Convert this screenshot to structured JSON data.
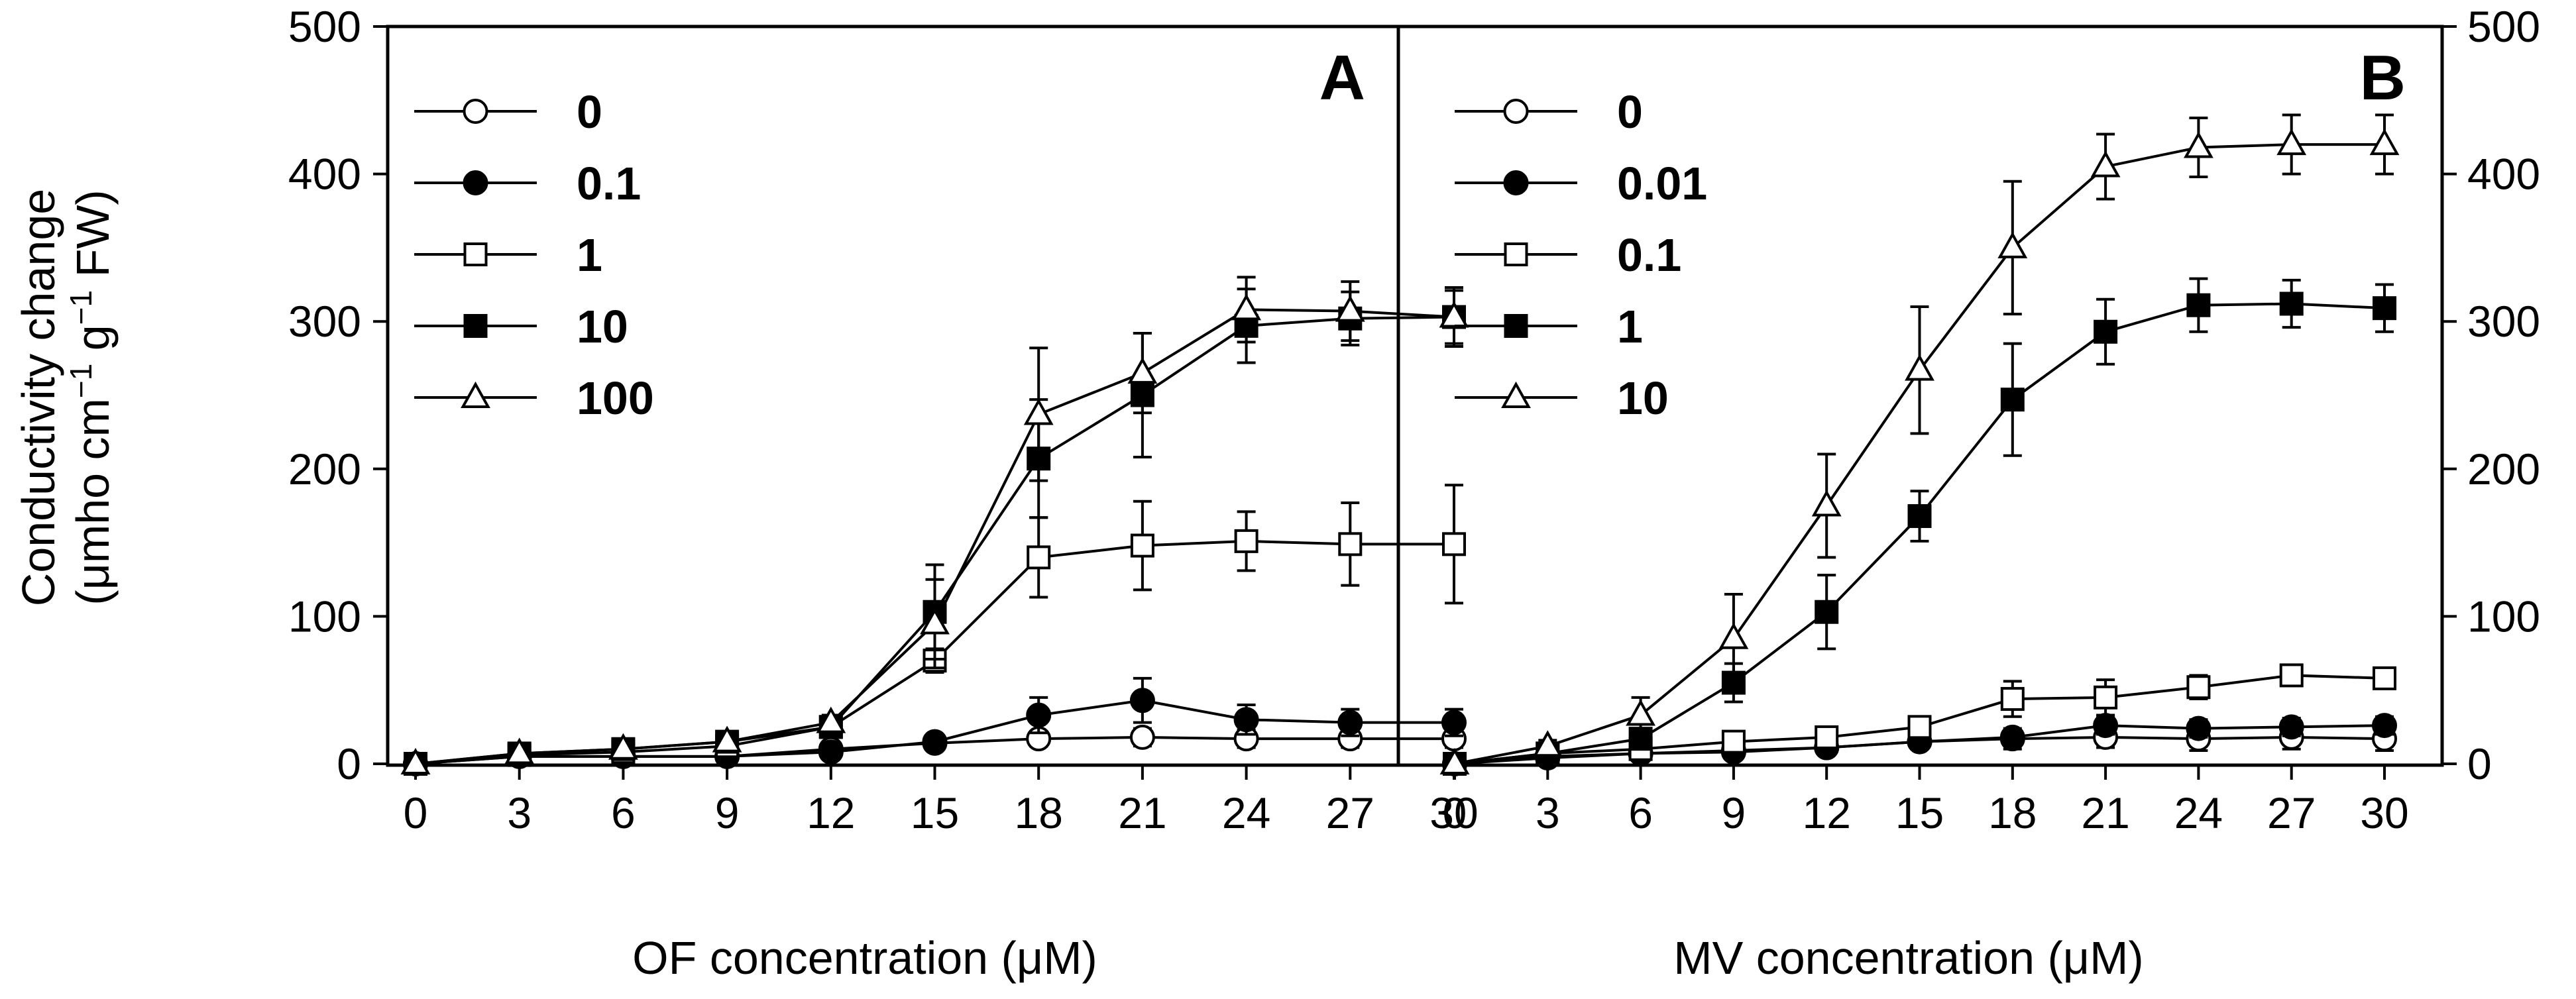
{
  "chart_data": [
    {
      "type": "line",
      "panel_label": "A",
      "xlabel": "OF concentration (μM)",
      "ylabel_line1": "Conductivity change",
      "ylabel_unit": "μmho",
      "ylabel_cm": "cm",
      "ylabel_exp": "−1",
      "ylabel_g": "g",
      "ylabel_fw": "FW)",
      "x": [
        0,
        3,
        6,
        9,
        12,
        15,
        18,
        21,
        24,
        27,
        30
      ],
      "x_ticks": [
        "0",
        "3",
        "6",
        "9",
        "12",
        "15",
        "18",
        "21",
        "24",
        "27",
        "30"
      ],
      "xlim": [
        0,
        30
      ],
      "ylim": [
        0,
        500
      ],
      "y_ticks": [
        "0",
        "100",
        "200",
        "300",
        "400",
        "500"
      ],
      "legend_position": "top-left",
      "series": [
        {
          "name": "0",
          "marker": "circle-open",
          "values": [
            0,
            5,
            5,
            5,
            10,
            14,
            17,
            18,
            17,
            17,
            17
          ],
          "errors": [
            0,
            2,
            2,
            2,
            3,
            3,
            5,
            6,
            6,
            6,
            6
          ]
        },
        {
          "name": "0.1",
          "marker": "circle-filled",
          "values": [
            0,
            5,
            5,
            5,
            8,
            15,
            33,
            43,
            30,
            28,
            28
          ],
          "errors": [
            0,
            2,
            2,
            2,
            3,
            4,
            12,
            15,
            10,
            9,
            9
          ]
        },
        {
          "name": "1",
          "marker": "square-open",
          "values": [
            0,
            6,
            8,
            12,
            25,
            70,
            140,
            148,
            151,
            149,
            149
          ],
          "errors": [
            0,
            3,
            3,
            4,
            6,
            8,
            27,
            30,
            20,
            28,
            40
          ]
        },
        {
          "name": "10",
          "marker": "square-filled",
          "values": [
            0,
            7,
            10,
            15,
            25,
            103,
            207,
            250,
            297,
            302,
            303
          ],
          "errors": [
            0,
            3,
            4,
            5,
            5,
            32,
            40,
            42,
            25,
            18,
            18
          ]
        },
        {
          "name": "100",
          "marker": "triangle-open",
          "values": [
            0,
            7,
            10,
            15,
            28,
            95,
            237,
            265,
            308,
            307,
            303
          ],
          "errors": [
            0,
            3,
            4,
            5,
            5,
            30,
            45,
            27,
            22,
            20,
            20
          ]
        }
      ]
    },
    {
      "type": "line",
      "panel_label": "B",
      "xlabel": "MV concentration (μM)",
      "x": [
        0,
        3,
        6,
        9,
        12,
        15,
        18,
        21,
        24,
        27,
        30
      ],
      "x_ticks": [
        "0",
        "3",
        "6",
        "9",
        "12",
        "15",
        "18",
        "21",
        "24",
        "27",
        "30"
      ],
      "xlim": [
        0,
        30
      ],
      "ylim": [
        0,
        500
      ],
      "y_ticks": [
        "0",
        "100",
        "200",
        "300",
        "400",
        "500"
      ],
      "legend_position": "top-left",
      "series": [
        {
          "name": "0",
          "marker": "circle-open",
          "values": [
            0,
            5,
            7,
            9,
            11,
            15,
            17,
            18,
            17,
            18,
            17
          ],
          "errors": [
            0,
            2,
            3,
            3,
            4,
            5,
            7,
            7,
            8,
            8,
            8
          ]
        },
        {
          "name": "0.01",
          "marker": "circle-filled",
          "values": [
            0,
            4,
            7,
            8,
            11,
            15,
            18,
            26,
            24,
            25,
            26
          ],
          "errors": [
            0,
            2,
            3,
            3,
            4,
            4,
            5,
            6,
            6,
            6,
            6
          ]
        },
        {
          "name": "0.1",
          "marker": "square-open",
          "values": [
            0,
            7,
            10,
            15,
            18,
            25,
            44,
            45,
            52,
            60,
            58
          ],
          "errors": [
            0,
            3,
            4,
            4,
            5,
            6,
            12,
            12,
            8,
            6,
            6
          ]
        },
        {
          "name": "1",
          "marker": "square-filled",
          "values": [
            0,
            7,
            17,
            55,
            103,
            168,
            247,
            293,
            311,
            312,
            309
          ],
          "errors": [
            0,
            3,
            4,
            13,
            25,
            17,
            38,
            22,
            18,
            16,
            16
          ]
        },
        {
          "name": "10",
          "marker": "triangle-open",
          "values": [
            0,
            12,
            33,
            85,
            175,
            267,
            350,
            405,
            418,
            420,
            420
          ],
          "errors": [
            0,
            4,
            12,
            30,
            35,
            43,
            45,
            22,
            20,
            20,
            20
          ]
        }
      ]
    }
  ]
}
